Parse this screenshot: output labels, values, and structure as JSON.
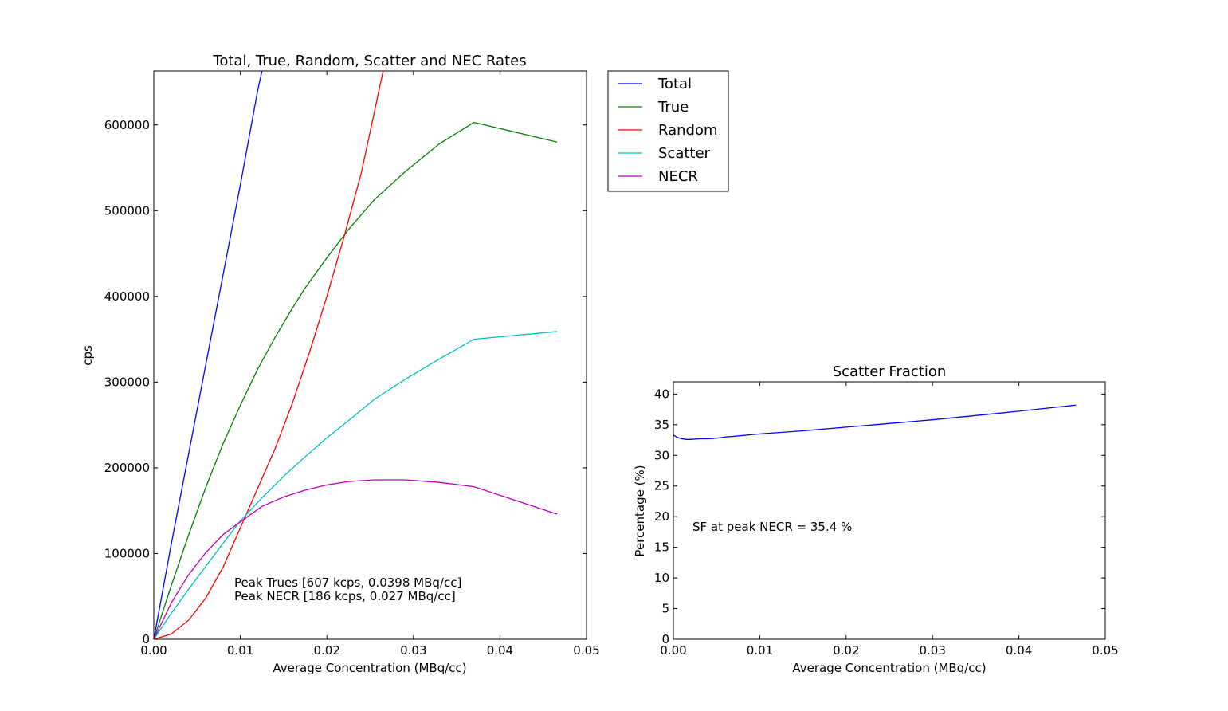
{
  "colors": {
    "total": "#0000ff",
    "true": "#008000",
    "random": "#ff0000",
    "scatter": "#00bfbf",
    "necr": "#bf00bf"
  },
  "chart_data": [
    {
      "type": "line",
      "title": "Total, True, Random, Scatter and NEC Rates",
      "xlabel": "Average Concentration (MBq/cc)",
      "ylabel": "cps",
      "xlim": [
        0,
        0.05
      ],
      "ylim": [
        0,
        663000
      ],
      "xticks": [
        0,
        0.01,
        0.02,
        0.03,
        0.04,
        0.05
      ],
      "xtick_labels": [
        "0.00",
        "0.01",
        "0.02",
        "0.03",
        "0.04",
        "0.05"
      ],
      "yticks": [
        0,
        100000,
        200000,
        300000,
        400000,
        500000,
        600000
      ],
      "ytick_labels": [
        "0",
        "100000",
        "200000",
        "300000",
        "400000",
        "500000",
        "600000"
      ],
      "grid": false,
      "legend": "outside-right-top",
      "series": [
        {
          "name": "Total",
          "color": "#0000ff",
          "x": [
            0,
            0.002,
            0.004,
            0.006,
            0.008,
            0.01,
            0.012,
            0.0125
          ],
          "y": [
            0,
            110000,
            215000,
            320000,
            425000,
            530000,
            640000,
            663000
          ]
        },
        {
          "name": "True",
          "color": "#008000",
          "x": [
            0,
            0.002,
            0.004,
            0.006,
            0.008,
            0.01,
            0.012,
            0.014,
            0.016,
            0.0175,
            0.02,
            0.0225,
            0.0255,
            0.029,
            0.033,
            0.037,
            0.0466
          ],
          "y": [
            0,
            62000,
            121000,
            177000,
            228000,
            273000,
            315000,
            352000,
            386000,
            410000,
            445000,
            478000,
            513000,
            545000,
            578000,
            603000,
            580000
          ]
        },
        {
          "name": "Random",
          "color": "#ff0000",
          "x": [
            0,
            0.002,
            0.004,
            0.006,
            0.008,
            0.01,
            0.012,
            0.014,
            0.016,
            0.018,
            0.02,
            0.022,
            0.024,
            0.0265
          ],
          "y": [
            0,
            6000,
            22000,
            48000,
            84000,
            130000,
            176000,
            222000,
            275000,
            335000,
            400000,
            470000,
            545000,
            663000
          ]
        },
        {
          "name": "Scatter",
          "color": "#00bfbf",
          "x": [
            0,
            0.002,
            0.004,
            0.006,
            0.008,
            0.01,
            0.0125,
            0.015,
            0.0175,
            0.02,
            0.0225,
            0.0255,
            0.029,
            0.033,
            0.037,
            0.0466
          ],
          "y": [
            0,
            30000,
            58000,
            85000,
            112000,
            138000,
            165000,
            190000,
            213000,
            235000,
            255000,
            280000,
            303000,
            327000,
            350000,
            359000
          ]
        },
        {
          "name": "NECR",
          "color": "#bf00bf",
          "x": [
            0,
            0.002,
            0.004,
            0.006,
            0.008,
            0.01,
            0.0125,
            0.015,
            0.0175,
            0.02,
            0.0225,
            0.0255,
            0.029,
            0.033,
            0.037,
            0.0466
          ],
          "y": [
            0,
            42000,
            75000,
            101000,
            122000,
            137000,
            155000,
            166000,
            174000,
            180000,
            184000,
            186000,
            186000,
            183000,
            178000,
            146000
          ]
        }
      ],
      "annotations": [
        "Peak Trues [607 kcps, 0.0398 MBq/cc]",
        "Peak NECR [186 kcps, 0.027 MBq/cc]"
      ]
    },
    {
      "type": "line",
      "title": "Scatter Fraction",
      "xlabel": "Average Concentration (MBq/cc)",
      "ylabel": "Percentage (%)",
      "xlim": [
        0,
        0.05
      ],
      "ylim": [
        0,
        42
      ],
      "xticks": [
        0,
        0.01,
        0.02,
        0.03,
        0.04,
        0.05
      ],
      "xtick_labels": [
        "0.00",
        "0.01",
        "0.02",
        "0.03",
        "0.04",
        "0.05"
      ],
      "yticks": [
        0,
        5,
        10,
        15,
        20,
        25,
        30,
        35,
        40
      ],
      "ytick_labels": [
        "0",
        "5",
        "10",
        "15",
        "20",
        "25",
        "30",
        "35",
        "40"
      ],
      "grid": false,
      "series": [
        {
          "name": "",
          "color": "#0000ff",
          "x": [
            0,
            0.0005,
            0.001,
            0.0015,
            0.002,
            0.003,
            0.004,
            0.005,
            0.006,
            0.007,
            0.01,
            0.015,
            0.02,
            0.025,
            0.03,
            0.035,
            0.04,
            0.0466
          ],
          "y": [
            33.3,
            32.9,
            32.7,
            32.6,
            32.6,
            32.7,
            32.7,
            32.8,
            33.0,
            33.1,
            33.5,
            34.0,
            34.6,
            35.2,
            35.8,
            36.5,
            37.2,
            38.2
          ]
        }
      ],
      "annotations": [
        "SF at peak NECR = 35.4 %"
      ]
    }
  ]
}
